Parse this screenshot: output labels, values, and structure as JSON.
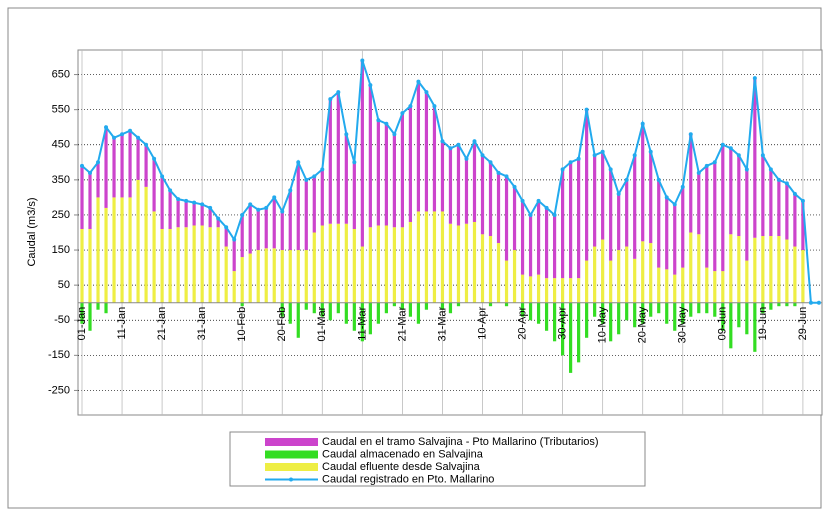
{
  "chart_data": {
    "type": "bar",
    "y_label": "Caudal (m3/s)",
    "categories": [
      "01-Jan",
      null,
      null,
      null,
      null,
      "11-Jan",
      null,
      null,
      null,
      null,
      "21-Jan",
      null,
      null,
      null,
      null,
      "31-Jan",
      null,
      null,
      null,
      null,
      "10-Feb",
      null,
      null,
      null,
      null,
      "20-Feb",
      null,
      null,
      null,
      null,
      "01-Mar",
      null,
      null,
      null,
      null,
      "11-Mar",
      null,
      null,
      null,
      null,
      "21-Mar",
      null,
      null,
      null,
      null,
      "31-Mar",
      null,
      null,
      null,
      null,
      "10-Apr",
      null,
      null,
      null,
      null,
      "20-Apr",
      null,
      null,
      null,
      null,
      "30-Apr",
      null,
      null,
      null,
      null,
      "10-May",
      null,
      null,
      null,
      null,
      "20-May",
      null,
      null,
      null,
      null,
      "30-May",
      null,
      null,
      null,
      null,
      "09-Jun",
      null,
      null,
      null,
      null,
      "19-Jun",
      null,
      null,
      null,
      null,
      "29-Jun",
      null,
      null
    ],
    "series": [
      {
        "name": "Caudal en  el tramo Salvajina - Pto Mallarino (Tributarios)",
        "color": "#cc44cc",
        "type": "bar",
        "stack": "main",
        "values": [
          180,
          160,
          100,
          230,
          170,
          180,
          190,
          120,
          120,
          150,
          150,
          110,
          80,
          75,
          65,
          60,
          55,
          25,
          55,
          90,
          120,
          140,
          115,
          115,
          145,
          110,
          170,
          250,
          200,
          160,
          160,
          355,
          375,
          255,
          190,
          530,
          405,
          300,
          290,
          265,
          325,
          330,
          370,
          340,
          300,
          200,
          215,
          230,
          185,
          230,
          225,
          210,
          200,
          240,
          180,
          210,
          175,
          210,
          200,
          180,
          310,
          330,
          340,
          430,
          260,
          250,
          260,
          160,
          190,
          295,
          335,
          260,
          250,
          205,
          200,
          230,
          280,
          175,
          290,
          310,
          360,
          245,
          230,
          260,
          455,
          230,
          190,
          160,
          160,
          150,
          140,
          0,
          0
        ]
      },
      {
        "name": "Caudal almacenado en Salvajina",
        "color": "#33dd22",
        "type": "bar",
        "values": [
          -60,
          -80,
          -20,
          -30,
          0,
          0,
          0,
          0,
          0,
          0,
          0,
          0,
          0,
          0,
          0,
          0,
          0,
          0,
          0,
          0,
          -10,
          0,
          0,
          0,
          0,
          -40,
          -60,
          -100,
          -20,
          -30,
          -40,
          -50,
          -30,
          -60,
          -80,
          -110,
          -90,
          -60,
          -30,
          -10,
          -20,
          -40,
          -60,
          -20,
          0,
          -20,
          -30,
          -10,
          0,
          0,
          0,
          -10,
          0,
          -10,
          0,
          -40,
          -50,
          -60,
          -80,
          -110,
          -150,
          -200,
          -170,
          -100,
          -40,
          -60,
          -110,
          -90,
          -50,
          -70,
          -60,
          -40,
          -30,
          -60,
          -80,
          -60,
          -40,
          -30,
          -30,
          -40,
          -80,
          -130,
          -70,
          -90,
          -140,
          -30,
          -20,
          -10,
          -10,
          -10,
          0,
          0,
          0
        ]
      },
      {
        "name": "Caudal efluente desde Salvajina",
        "color": "#eeee44",
        "type": "bar",
        "stack": "main",
        "values": [
          210,
          210,
          300,
          270,
          300,
          300,
          300,
          350,
          330,
          260,
          210,
          210,
          215,
          215,
          220,
          220,
          215,
          215,
          160,
          90,
          130,
          140,
          150,
          155,
          155,
          150,
          150,
          150,
          150,
          200,
          220,
          225,
          225,
          225,
          210,
          160,
          215,
          220,
          220,
          215,
          215,
          230,
          260,
          260,
          260,
          260,
          225,
          220,
          225,
          230,
          195,
          190,
          170,
          120,
          150,
          80,
          75,
          80,
          70,
          70,
          70,
          70,
          70,
          120,
          160,
          180,
          120,
          150,
          160,
          125,
          175,
          170,
          100,
          95,
          80,
          100,
          200,
          195,
          100,
          90,
          90,
          195,
          190,
          120,
          185,
          190,
          190,
          190,
          180,
          160,
          150,
          0,
          0
        ]
      },
      {
        "name": "Caudal registrado en Pto. Mallarino",
        "color": "#22aaee",
        "type": "line",
        "values": [
          390,
          370,
          400,
          500,
          470,
          480,
          490,
          470,
          450,
          410,
          360,
          320,
          295,
          290,
          285,
          280,
          270,
          240,
          215,
          180,
          250,
          280,
          265,
          270,
          300,
          260,
          320,
          400,
          350,
          360,
          380,
          580,
          600,
          480,
          400,
          690,
          620,
          520,
          510,
          480,
          540,
          560,
          630,
          600,
          560,
          460,
          440,
          450,
          410,
          460,
          420,
          400,
          370,
          360,
          330,
          290,
          250,
          290,
          270,
          250,
          380,
          400,
          410,
          550,
          420,
          430,
          380,
          310,
          350,
          420,
          510,
          430,
          350,
          300,
          280,
          330,
          480,
          370,
          390,
          400,
          450,
          440,
          420,
          380,
          640,
          420,
          380,
          350,
          340,
          310,
          290,
          0,
          0
        ]
      }
    ],
    "ylim": [
      -320,
      720
    ],
    "yticks": [
      650,
      550,
      450,
      350,
      250,
      150,
      50,
      -50,
      -150,
      -250
    ],
    "grid": true
  }
}
